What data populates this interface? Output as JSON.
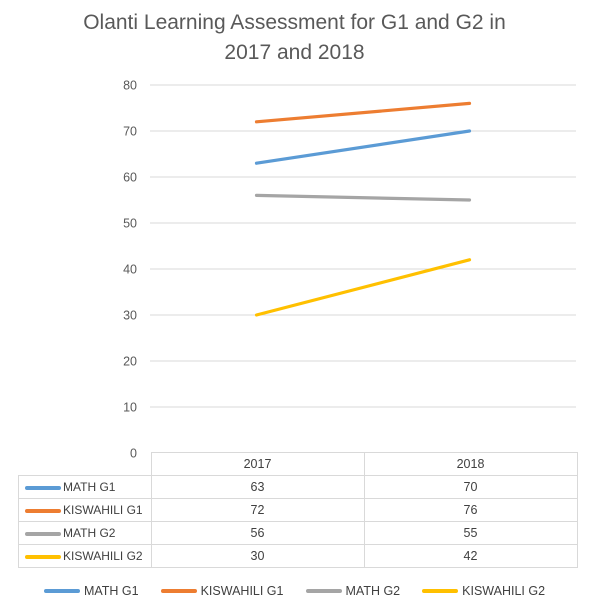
{
  "chart_data": {
    "type": "line",
    "title": "Olanti Learning Assessment for G1 and G2 in 2017 and 2018",
    "title_lines": [
      "Olanti Learning Assessment for G1 and G2 in",
      "2017 and 2018"
    ],
    "xlabel": "",
    "ylabel": "",
    "categories": [
      "2017",
      "2018"
    ],
    "ylim": [
      0,
      80
    ],
    "yticks": [
      0,
      10,
      20,
      30,
      40,
      50,
      60,
      70,
      80
    ],
    "grid": true,
    "legend": "bottom",
    "data_table": true,
    "series": [
      {
        "name": "MATH G1",
        "values": [
          63,
          70
        ],
        "color": "#5b9bd5"
      },
      {
        "name": "KISWAHILI G1",
        "values": [
          72,
          76
        ],
        "color": "#ed7d31"
      },
      {
        "name": "MATH G2",
        "values": [
          56,
          55
        ],
        "color": "#a5a5a5"
      },
      {
        "name": "KISWAHILI G2",
        "values": [
          30,
          42
        ],
        "color": "#ffc000"
      }
    ]
  }
}
